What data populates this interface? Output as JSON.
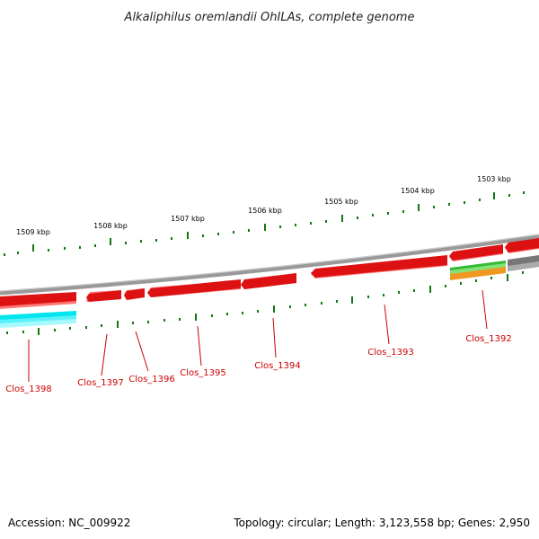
{
  "title": "Alkaliphilus oremlandii OhILAs, complete genome",
  "footer": {
    "accession": "Accession: NC_009922",
    "summary": "Topology: circular; Length: 3,123,558 bp; Genes: 2,950"
  },
  "kbp_labels": [
    "1509 kbp",
    "1508 kbp",
    "1507 kbp",
    "1506 kbp",
    "1505 kbp",
    "1504 kbp",
    "1503 kbp"
  ],
  "gene_labels": [
    "Clos_1398",
    "Clos_1397",
    "Clos_1396",
    "Clos_1395",
    "Clos_1394",
    "Clos_1393",
    "Clos_1392"
  ],
  "colors": {
    "backbone": "#888888",
    "cds": "#dd1111",
    "cds_shadow": "#ff7777",
    "rna": "#00e5ee",
    "tick": "#117711",
    "label": "#cc0000",
    "green_feature": "#33bb33",
    "orange_feature": "#ee9922",
    "gray_feature": "#777777"
  }
}
